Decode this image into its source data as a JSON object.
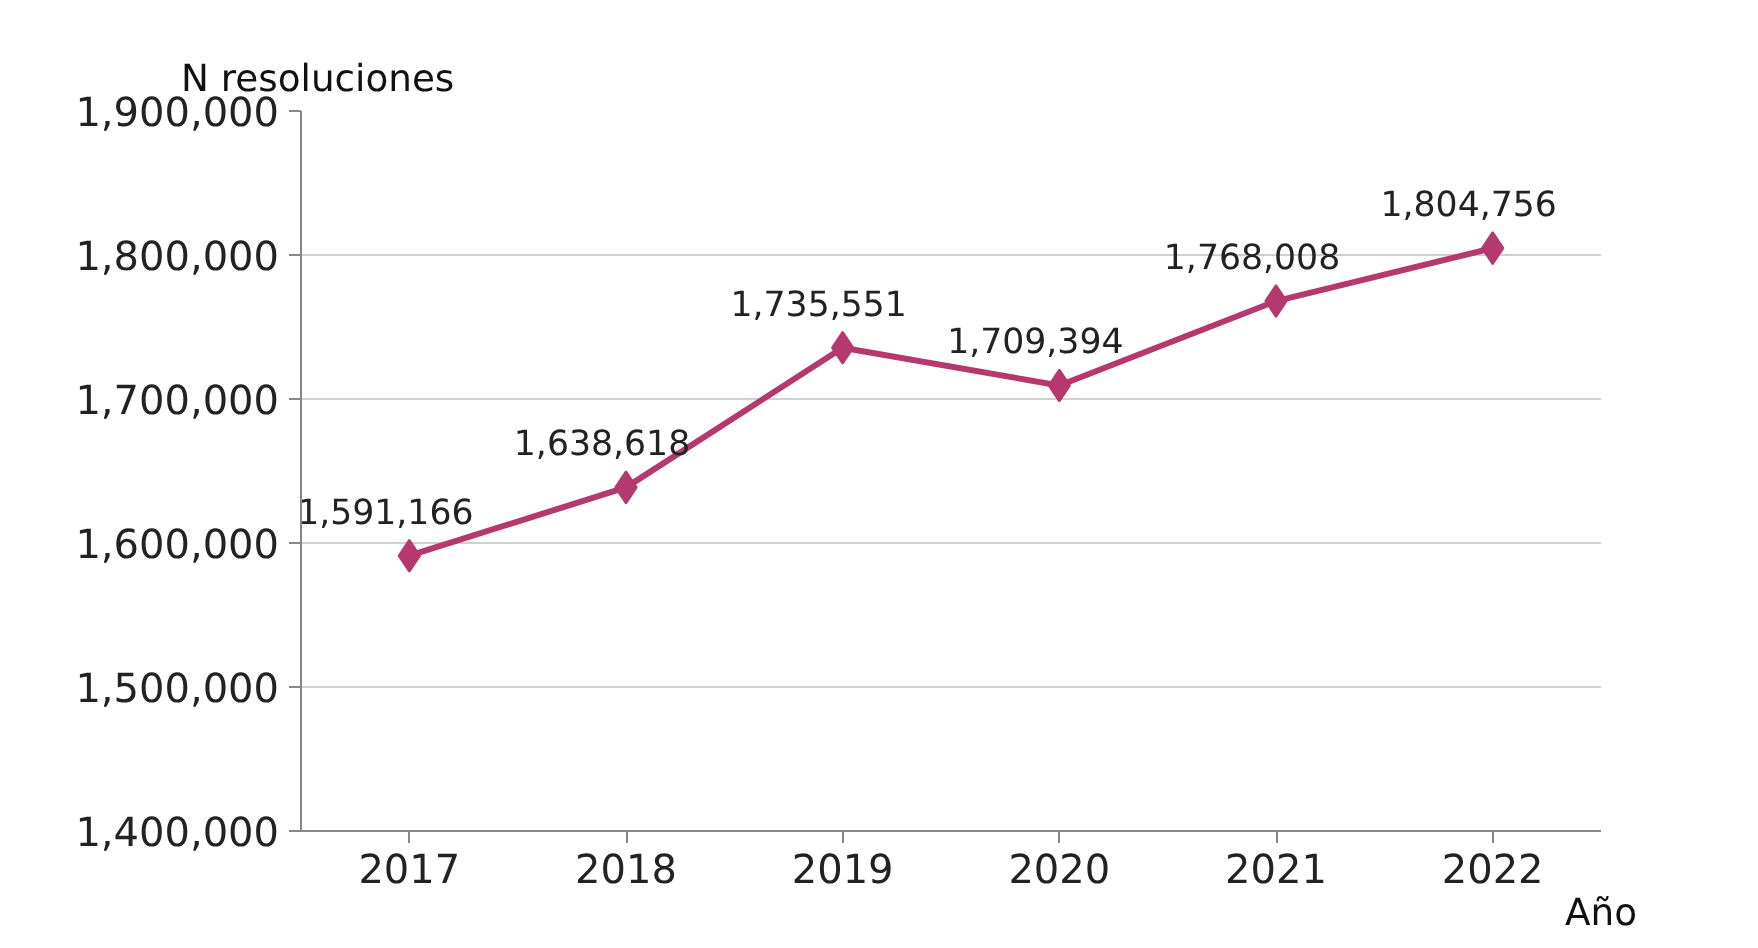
{
  "chart_data": {
    "type": "line",
    "ylabel": "N resoluciones",
    "xlabel": "Año",
    "categories": [
      "2017",
      "2018",
      "2019",
      "2020",
      "2021",
      "2022"
    ],
    "series": [
      {
        "color": "#b5386e",
        "values": [
          1591166,
          1638618,
          1735551,
          1709394,
          1768008,
          1804756
        ],
        "value_labels": [
          "1,591,166",
          "1,638,618",
          "1,735,551",
          "1,709,394",
          "1,768,008",
          "1,804,756"
        ]
      }
    ],
    "ylim": [
      1400000,
      1900000
    ],
    "yticks": [
      {
        "value": 1400000,
        "label": "1,400,000"
      },
      {
        "value": 1500000,
        "label": "1,500,000"
      },
      {
        "value": 1600000,
        "label": "1,600,000"
      },
      {
        "value": 1700000,
        "label": "1,700,000"
      },
      {
        "value": 1800000,
        "label": "1,800,000"
      },
      {
        "value": 1900000,
        "label": "1,900,000"
      }
    ],
    "grid": "y",
    "marker": "diamond",
    "line_style": "solid",
    "data_labels": true
  }
}
